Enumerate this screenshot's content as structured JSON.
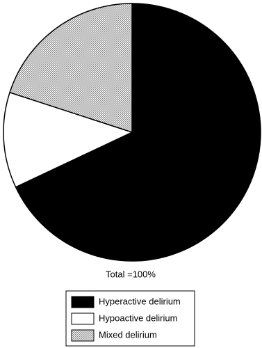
{
  "chart_data": {
    "type": "pie",
    "categories": [
      "Hyperactive delirium",
      "Hypoactive delirium",
      "Mixed delirium"
    ],
    "values": [
      68,
      12,
      20
    ],
    "colors": [
      "#000000",
      "#ffffff",
      "#8a8a8a"
    ],
    "annotation": "Total =100%",
    "legend": "bottom"
  }
}
